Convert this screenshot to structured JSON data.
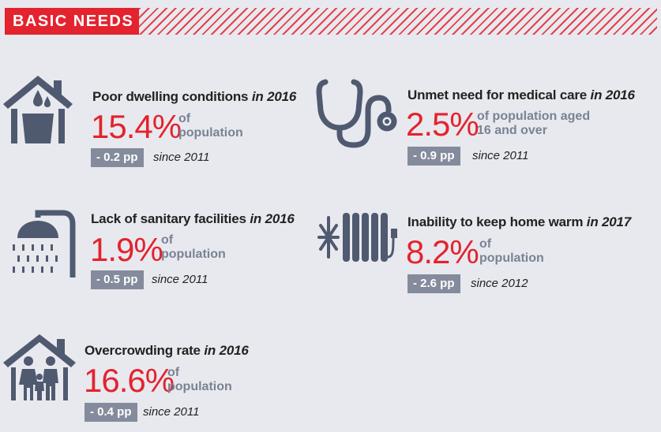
{
  "header": {
    "title": "BASIC NEEDS"
  },
  "indicators": [
    {
      "title": "Poor dwelling conditions",
      "year": "in 2016",
      "value": "15.4%",
      "unit_line1": "of",
      "unit_line2": "population",
      "change": "- 0.2 pp",
      "since": "since 2011",
      "icon": "house-bucket-icon"
    },
    {
      "title": "Unmet need for medical care",
      "year": "in 2016",
      "value": "2.5%",
      "unit_line1": "of population aged",
      "unit_line2": "16 and over",
      "change": "- 0.9 pp",
      "since": "since 2011",
      "icon": "stethoscope-icon"
    },
    {
      "title": "Lack of sanitary facilities",
      "year": "in 2016",
      "value": "1.9%",
      "unit_line1": "of",
      "unit_line2": "population",
      "change": "- 0.5 pp",
      "since": "since 2011",
      "icon": "shower-icon"
    },
    {
      "title": "Inability to keep home warm",
      "year": "in 2017",
      "value": "8.2%",
      "unit_line1": "of",
      "unit_line2": "population",
      "change": "- 2.6 pp",
      "since": "since 2012",
      "icon": "radiator-snowflake-icon"
    },
    {
      "title": "Overcrowding rate",
      "year": "in 2016",
      "value": "16.6%",
      "unit_line1": "of",
      "unit_line2": "population",
      "change": "- 0.4 pp",
      "since": "since 2011",
      "icon": "house-family-icon"
    }
  ],
  "colors": {
    "accent": "#e3232e",
    "icon": "#4f5a70",
    "badge": "#848b9c",
    "background": "#e8e9ee"
  }
}
